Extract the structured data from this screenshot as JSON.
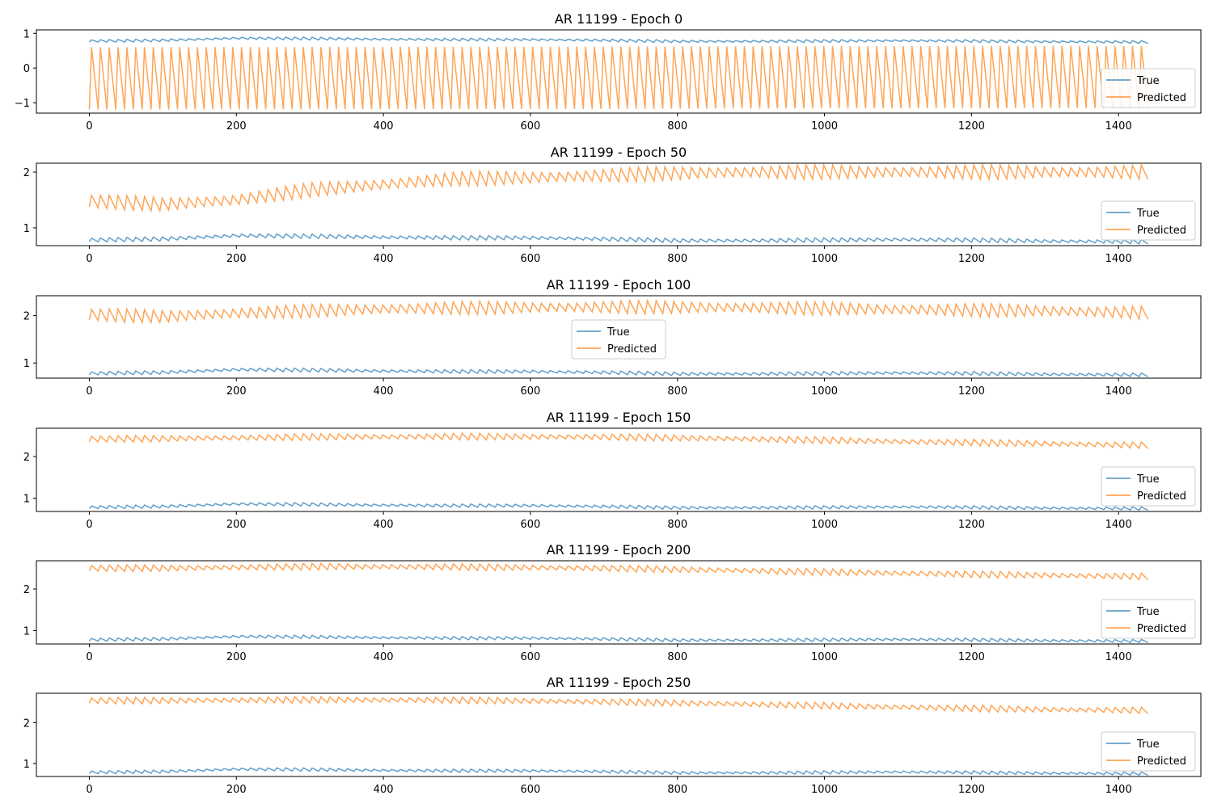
{
  "chart_data": [
    {
      "type": "line",
      "title": "AR 11199 - Epoch 0",
      "xlim": [
        -72,
        1512
      ],
      "ylim": [
        -1.3,
        1.1
      ],
      "xticks": [
        0,
        200,
        400,
        600,
        800,
        1000,
        1200,
        1400
      ],
      "yticks": [
        -1,
        0,
        1
      ],
      "ytick_labels": [
        "−1",
        "0",
        "1"
      ],
      "legend": {
        "placement": "lower-right",
        "entries": [
          "True",
          "Predicted"
        ]
      },
      "series": [
        {
          "name": "True",
          "color": "#1f77b4",
          "x": [
            0,
            100,
            200,
            300,
            400,
            500,
            600,
            700,
            800,
            900,
            1000,
            1100,
            1200,
            1300,
            1440
          ],
          "y": [
            0.78,
            0.8,
            0.86,
            0.85,
            0.83,
            0.82,
            0.82,
            0.8,
            0.77,
            0.77,
            0.78,
            0.79,
            0.78,
            0.76,
            0.75
          ],
          "oscillation": {
            "amplitude": 0.04,
            "period": 12
          }
        },
        {
          "name": "Predicted",
          "color": "#ff7f0e",
          "x": [
            0,
            1440
          ],
          "y": [
            -0.3,
            0.0
          ],
          "oscillation": {
            "min": -1.2,
            "max": 0.6,
            "period": 12
          }
        }
      ]
    },
    {
      "type": "line",
      "title": "AR 11199 - Epoch 50",
      "xlim": [
        -72,
        1512
      ],
      "ylim": [
        0.68,
        2.16
      ],
      "xticks": [
        0,
        200,
        400,
        600,
        800,
        1000,
        1200,
        1400
      ],
      "yticks": [
        1,
        2
      ],
      "ytick_labels": [
        "1",
        "2"
      ],
      "legend": {
        "placement": "lower-right",
        "entries": [
          "True",
          "Predicted"
        ]
      },
      "series": [
        {
          "name": "True",
          "color": "#1f77b4",
          "x": [
            0,
            100,
            200,
            300,
            400,
            500,
            600,
            700,
            800,
            900,
            1000,
            1100,
            1200,
            1300,
            1440
          ],
          "y": [
            0.78,
            0.8,
            0.86,
            0.85,
            0.83,
            0.82,
            0.82,
            0.8,
            0.77,
            0.77,
            0.78,
            0.79,
            0.78,
            0.76,
            0.75
          ],
          "oscillation": {
            "amplitude": 0.04,
            "period": 12
          }
        },
        {
          "name": "Predicted",
          "color": "#ff7f0e",
          "x": [
            0,
            100,
            200,
            300,
            400,
            500,
            600,
            700,
            800,
            900,
            1000,
            1200,
            1440
          ],
          "y": [
            1.48,
            1.42,
            1.5,
            1.68,
            1.78,
            1.88,
            1.9,
            1.94,
            1.98,
            2.0,
            2.0,
            2.0,
            2.0
          ],
          "oscillation": {
            "amplitude": 0.13,
            "period": 12
          }
        }
      ]
    },
    {
      "type": "line",
      "title": "AR 11199 - Epoch 100",
      "xlim": [
        -72,
        1512
      ],
      "ylim": [
        0.68,
        2.42
      ],
      "xticks": [
        0,
        200,
        400,
        600,
        800,
        1000,
        1200,
        1400
      ],
      "yticks": [
        1,
        2
      ],
      "ytick_labels": [
        "1",
        "2"
      ],
      "legend": {
        "placement": "center",
        "entries": [
          "True",
          "Predicted"
        ]
      },
      "series": [
        {
          "name": "True",
          "color": "#1f77b4",
          "x": [
            0,
            100,
            200,
            300,
            400,
            500,
            600,
            700,
            800,
            900,
            1000,
            1100,
            1200,
            1300,
            1440
          ],
          "y": [
            0.78,
            0.8,
            0.86,
            0.85,
            0.83,
            0.82,
            0.82,
            0.8,
            0.77,
            0.77,
            0.78,
            0.79,
            0.78,
            0.76,
            0.75
          ],
          "oscillation": {
            "amplitude": 0.04,
            "period": 12
          }
        },
        {
          "name": "Predicted",
          "color": "#ff7f0e",
          "x": [
            0,
            100,
            200,
            300,
            400,
            500,
            700,
            900,
            1100,
            1300,
            1440
          ],
          "y": [
            2.02,
            1.98,
            2.05,
            2.1,
            2.14,
            2.16,
            2.18,
            2.17,
            2.13,
            2.1,
            2.06
          ],
          "oscillation": {
            "amplitude": 0.14,
            "period": 12
          }
        }
      ]
    },
    {
      "type": "line",
      "title": "AR 11199 - Epoch 150",
      "xlim": [
        -72,
        1512
      ],
      "ylim": [
        0.68,
        2.68
      ],
      "xticks": [
        0,
        200,
        400,
        600,
        800,
        1000,
        1200,
        1400
      ],
      "yticks": [
        1,
        2
      ],
      "ytick_labels": [
        "1",
        "2"
      ],
      "legend": {
        "placement": "lower-right",
        "entries": [
          "True",
          "Predicted"
        ]
      },
      "series": [
        {
          "name": "True",
          "color": "#1f77b4",
          "x": [
            0,
            100,
            200,
            300,
            400,
            500,
            600,
            700,
            800,
            900,
            1000,
            1100,
            1200,
            1300,
            1440
          ],
          "y": [
            0.78,
            0.8,
            0.86,
            0.85,
            0.83,
            0.82,
            0.82,
            0.8,
            0.77,
            0.77,
            0.78,
            0.79,
            0.78,
            0.76,
            0.75
          ],
          "oscillation": {
            "amplitude": 0.04,
            "period": 12
          }
        },
        {
          "name": "Predicted",
          "color": "#ff7f0e",
          "x": [
            0,
            100,
            300,
            500,
            700,
            900,
            1100,
            1300,
            1440
          ],
          "y": [
            2.42,
            2.43,
            2.47,
            2.48,
            2.47,
            2.42,
            2.36,
            2.31,
            2.27
          ],
          "oscillation": {
            "amplitude": 0.08,
            "period": 12
          }
        }
      ]
    },
    {
      "type": "line",
      "title": "AR 11199 - Epoch 200",
      "xlim": [
        -72,
        1512
      ],
      "ylim": [
        0.68,
        2.68
      ],
      "xticks": [
        0,
        200,
        400,
        600,
        800,
        1000,
        1200,
        1400
      ],
      "yticks": [
        1,
        2
      ],
      "ytick_labels": [
        "1",
        "2"
      ],
      "legend": {
        "placement": "lower-right",
        "entries": [
          "True",
          "Predicted"
        ]
      },
      "series": [
        {
          "name": "True",
          "color": "#1f77b4",
          "x": [
            0,
            100,
            200,
            300,
            400,
            500,
            600,
            700,
            800,
            900,
            1000,
            1100,
            1200,
            1300,
            1440
          ],
          "y": [
            0.78,
            0.8,
            0.86,
            0.85,
            0.83,
            0.82,
            0.82,
            0.8,
            0.77,
            0.77,
            0.78,
            0.79,
            0.78,
            0.76,
            0.75
          ],
          "oscillation": {
            "amplitude": 0.04,
            "period": 12
          }
        },
        {
          "name": "Predicted",
          "color": "#ff7f0e",
          "x": [
            0,
            100,
            300,
            500,
            700,
            900,
            1100,
            1300,
            1440
          ],
          "y": [
            2.5,
            2.5,
            2.54,
            2.53,
            2.5,
            2.44,
            2.38,
            2.33,
            2.3
          ],
          "oscillation": {
            "amplitude": 0.08,
            "period": 12
          }
        }
      ]
    },
    {
      "type": "line",
      "title": "AR 11199 - Epoch 250",
      "xlim": [
        -72,
        1512
      ],
      "ylim": [
        0.68,
        2.72
      ],
      "xticks": [
        0,
        200,
        400,
        600,
        800,
        1000,
        1200,
        1400
      ],
      "yticks": [
        1,
        2
      ],
      "ytick_labels": [
        "1",
        "2"
      ],
      "legend": {
        "placement": "lower-right",
        "entries": [
          "True",
          "Predicted"
        ]
      },
      "series": [
        {
          "name": "True",
          "color": "#1f77b4",
          "x": [
            0,
            100,
            200,
            300,
            400,
            500,
            600,
            700,
            800,
            900,
            1000,
            1100,
            1200,
            1300,
            1440
          ],
          "y": [
            0.78,
            0.8,
            0.86,
            0.85,
            0.83,
            0.82,
            0.82,
            0.8,
            0.77,
            0.77,
            0.78,
            0.79,
            0.78,
            0.76,
            0.75
          ],
          "oscillation": {
            "amplitude": 0.04,
            "period": 12
          }
        },
        {
          "name": "Predicted",
          "color": "#ff7f0e",
          "x": [
            0,
            100,
            300,
            500,
            700,
            900,
            1100,
            1300,
            1440
          ],
          "y": [
            2.54,
            2.54,
            2.56,
            2.55,
            2.51,
            2.45,
            2.38,
            2.32,
            2.3
          ],
          "oscillation": {
            "amplitude": 0.08,
            "period": 12
          }
        }
      ]
    }
  ]
}
